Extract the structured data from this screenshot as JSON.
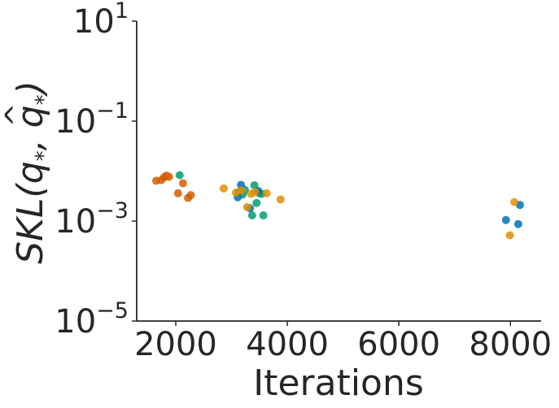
{
  "chart_data": {
    "type": "scatter",
    "title": "",
    "xlabel": "Iterations",
    "ylabel": "SKL(q*, q̂*)",
    "ylabel_parts": {
      "base": "SKL(",
      "q1": "q",
      "sub": "*",
      "comma": ", ",
      "q2": "q",
      "hat": "^",
      "close": ")"
    },
    "xscale": "linear",
    "yscale": "log",
    "xlim": [
      1300,
      8550
    ],
    "ylim": [
      1e-05,
      10
    ],
    "x_ticks": [
      2000,
      4000,
      6000,
      8000
    ],
    "x_tick_labels": [
      "2000",
      "4000",
      "6000",
      "8000"
    ],
    "y_ticks": [
      1e-05,
      0.001,
      0.1,
      10
    ],
    "y_tick_labels": [
      {
        "base": "10",
        "exp": "−5"
      },
      {
        "base": "10",
        "exp": "−3"
      },
      {
        "base": "10",
        "exp": "−1"
      },
      {
        "base": "10",
        "exp": "1"
      }
    ],
    "grid": false,
    "legend": "none",
    "series": [
      {
        "color": "#d55e00",
        "points": [
          {
            "x": 1650,
            "y": 0.0064
          },
          {
            "x": 1740,
            "y": 0.0066
          },
          {
            "x": 1790,
            "y": 0.0075
          },
          {
            "x": 1830,
            "y": 0.0081
          },
          {
            "x": 1880,
            "y": 0.0077
          },
          {
            "x": 2040,
            "y": 0.0036
          },
          {
            "x": 2130,
            "y": 0.0057
          },
          {
            "x": 2220,
            "y": 0.0029
          },
          {
            "x": 2270,
            "y": 0.0033
          }
        ]
      },
      {
        "color": "#029e73",
        "points": [
          {
            "x": 2070,
            "y": 0.0083
          },
          {
            "x": 3130,
            "y": 0.0038
          },
          {
            "x": 3200,
            "y": 0.0034
          },
          {
            "x": 3240,
            "y": 0.0042
          },
          {
            "x": 3370,
            "y": 0.0013
          },
          {
            "x": 3410,
            "y": 0.0052
          },
          {
            "x": 3450,
            "y": 0.0023
          },
          {
            "x": 3500,
            "y": 0.0036
          },
          {
            "x": 3540,
            "y": 0.0035
          },
          {
            "x": 3570,
            "y": 0.0013
          }
        ]
      },
      {
        "color": "#0173b2",
        "points": [
          {
            "x": 3110,
            "y": 0.003
          },
          {
            "x": 3170,
            "y": 0.0053
          },
          {
            "x": 3330,
            "y": 0.0018
          },
          {
            "x": 3480,
            "y": 0.004
          },
          {
            "x": 7920,
            "y": 0.00105
          },
          {
            "x": 8170,
            "y": 0.0021
          },
          {
            "x": 8140,
            "y": 0.00087
          }
        ]
      },
      {
        "color": "#de8f05",
        "points": [
          {
            "x": 2860,
            "y": 0.0045
          },
          {
            "x": 3080,
            "y": 0.0037
          },
          {
            "x": 3180,
            "y": 0.0041
          },
          {
            "x": 3280,
            "y": 0.0019
          },
          {
            "x": 3350,
            "y": 0.0035
          },
          {
            "x": 3420,
            "y": 0.0038
          },
          {
            "x": 3630,
            "y": 0.0036
          },
          {
            "x": 3880,
            "y": 0.0027
          },
          {
            "x": 7990,
            "y": 0.00052
          },
          {
            "x": 8070,
            "y": 0.0024
          }
        ]
      }
    ]
  }
}
